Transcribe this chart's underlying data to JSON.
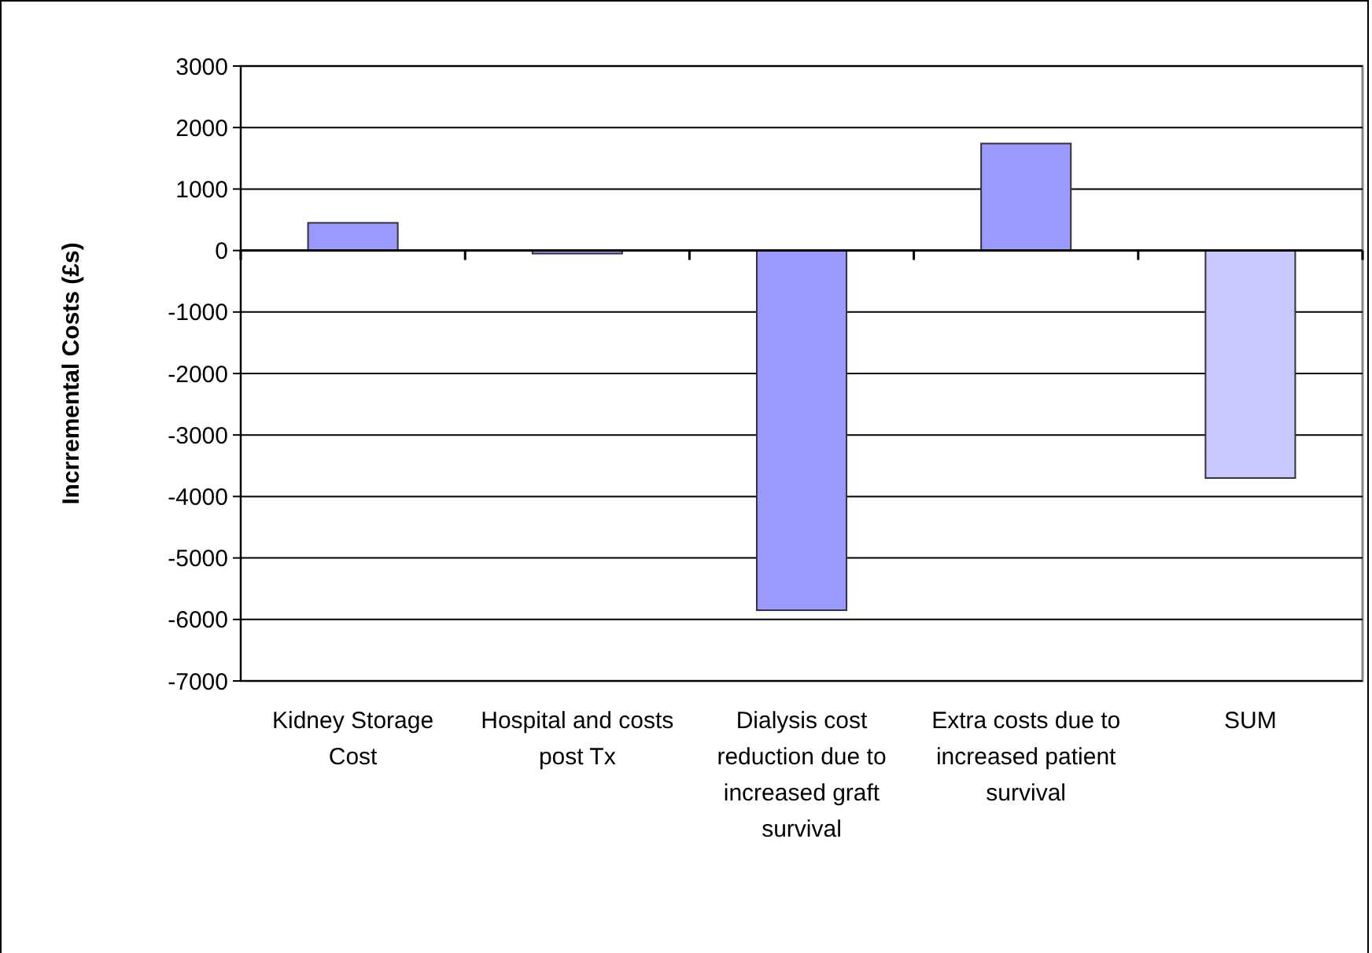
{
  "chart_data": {
    "type": "bar",
    "ylabel": "Incrremental Costs (£s)",
    "categories": [
      "Kidney Storage Cost",
      "Hospital and costs post Tx",
      "Dialysis cost reduction due to increased graft survival",
      "Extra costs due to increased patient survival",
      "SUM"
    ],
    "values": [
      450,
      -50,
      -5850,
      1740,
      -3700
    ],
    "colors": [
      "#9999ff",
      "#9999ff",
      "#9999ff",
      "#9999ff",
      "#c8c8ff"
    ],
    "ylim": [
      -7000,
      3000
    ],
    "yticks": [
      -7000,
      -6000,
      -5000,
      -4000,
      -3000,
      -2000,
      -1000,
      0,
      1000,
      2000,
      3000
    ],
    "grid": "y"
  }
}
